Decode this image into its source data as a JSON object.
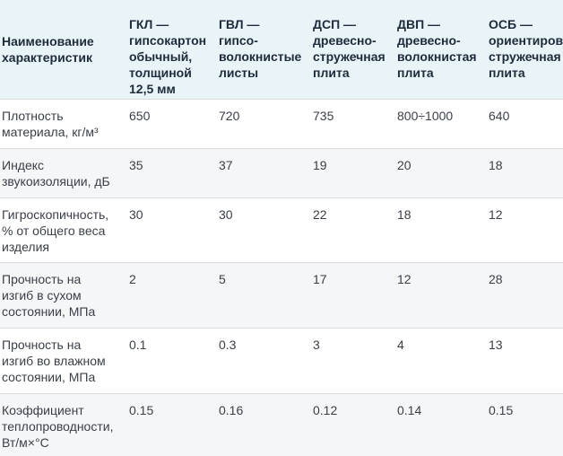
{
  "table": {
    "headers": [
      "Наименование\nхарактеристик",
      "ГКЛ —\nгипсокартон\nобычный,\nтолщиной\n12,5 мм",
      "ГВЛ —\nгипсо-\nволокнистые\nлисты",
      "ДСП —\nдревесно-\nстружечная\nплита",
      "ДВП —\nдревесно-\nволокнистая\nплита",
      "ОСБ —\nориентиров\nстружечная\nплита"
    ],
    "rows": [
      {
        "label": "Плотность\nматериала, кг/м³",
        "values": [
          "650",
          "720",
          "735",
          "800÷1000",
          "640"
        ]
      },
      {
        "label": "Индекс\nзвукоизоляции, дБ",
        "values": [
          "35",
          "37",
          "19",
          "20",
          "18"
        ]
      },
      {
        "label": "Гигроскопичность,\n% от общего веса\nизделия",
        "values": [
          "30",
          "30",
          "22",
          "18",
          "12"
        ]
      },
      {
        "label": "Прочность на\nизгиб в сухом\nсостоянии, МПа",
        "values": [
          "2",
          "5",
          "17",
          "12",
          "28"
        ]
      },
      {
        "label": "Прочность на\nизгиб во влажном\nсостоянии, МПа",
        "values": [
          "0.1",
          "0.3",
          "3",
          "4",
          "13"
        ]
      },
      {
        "label": "Коэффициент\nтеплопроводности,\nВт/м×°C",
        "values": [
          "0.15",
          "0.16",
          "0.12",
          "0.14",
          "0.15"
        ]
      }
    ]
  },
  "colors": {
    "header_background": "#e8f4f8",
    "row_alt_background": "#f5f6f8",
    "row_divider": "#d9dde2",
    "header_text": "#1f2a3a",
    "body_text": "#3a3f47"
  }
}
